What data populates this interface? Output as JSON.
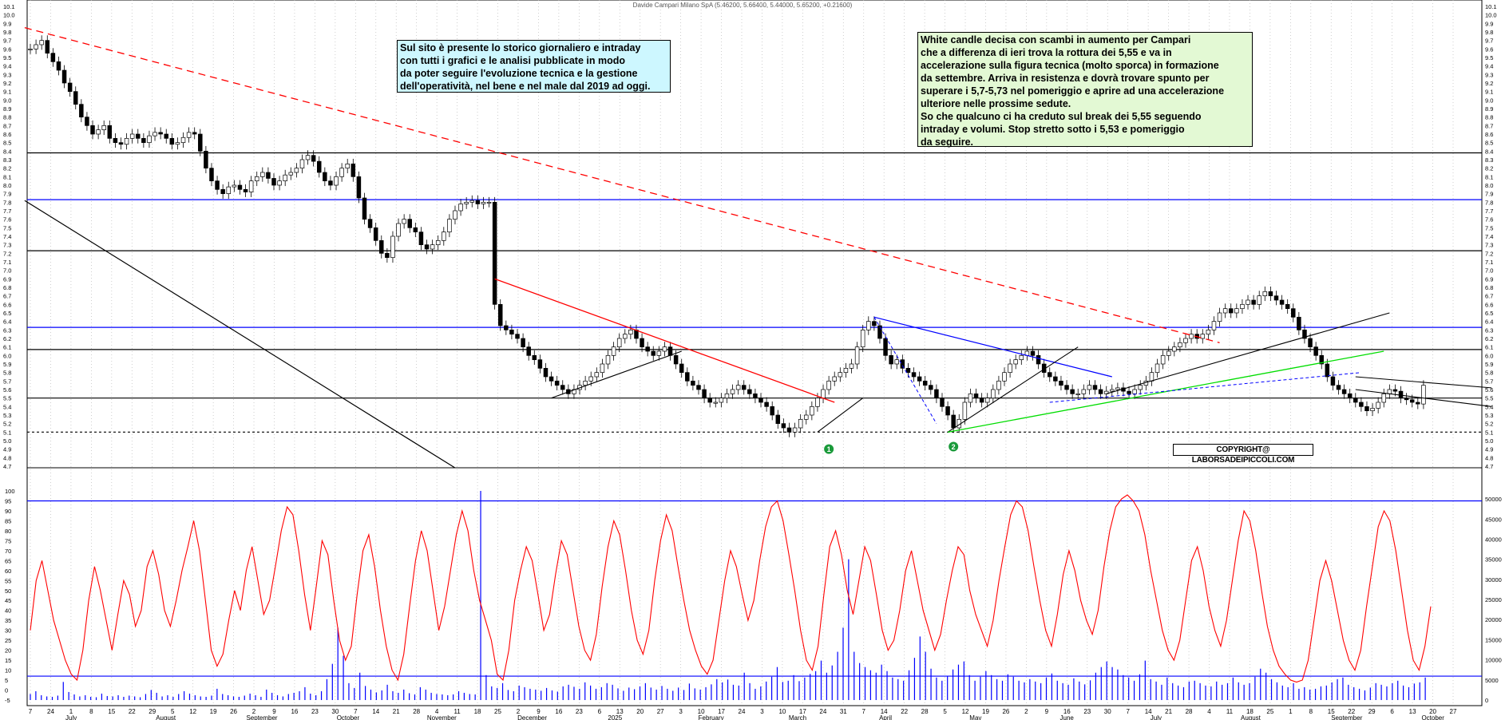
{
  "title": "Davide Campari Milano SpA (5.46200, 5.66400, 5.44000, 5.65200, +0.21600)",
  "note_left": [
    "Sul sito è presente lo storico giornaliero e intraday",
    "con tutti i grafici e le analisi pubblicate in modo",
    "da poter seguire l'evoluzione tecnica e la gestione",
    "dell'operatività, nel bene e nel male dal 2019 ad oggi."
  ],
  "note_right": [
    "White candle decisa con scambi in aumento per Campari",
    "che a differenza di ieri trova la rottura dei 5,55 e va in",
    "accelerazione sulla figura tecnica (molto sporca) in formazione",
    "da settembre. Arriva in resistenza e dovrà trovare spunto per",
    "superare i 5,7-5,73 nel pomeriggio e aprire ad una accelerazione",
    "ulteriore nelle prossime sedute.",
    "So che qualcuno ci ha creduto sul break dei 5,55 seguendo",
    "intraday e volumi. Stop stretto sotto i 5,53 e pomeriggio",
    "da seguire."
  ],
  "copyright": "COPYRIGHT@ LABORSADEIPICCOLI.COM",
  "markers": [
    "1",
    "2"
  ],
  "colors": {
    "candle": "#000000",
    "resistance_blue": "#0000ff",
    "support_black": "#000000",
    "downtrend_red": "#ff0000",
    "uptrend_green": "#00dd00",
    "oscillator": "#ff0000",
    "volume": "#0000ff",
    "marker_green": "#1a9a3a"
  },
  "chart_data": [
    {
      "type": "candlestick",
      "title": "Davide Campari Milano SpA (5.46200, 5.66400, 5.44000, 5.65200, +0.21600)",
      "last_bar": {
        "open": 5.462,
        "high": 5.664,
        "low": 5.44,
        "close": 5.652,
        "change": 0.216
      },
      "ylim": [
        4.7,
        10.1
      ],
      "y_ticks": [
        "10.1",
        "10.0",
        "9.9",
        "9.8",
        "9.7",
        "9.6",
        "9.5",
        "9.4",
        "9.3",
        "9.2",
        "9.1",
        "9.0",
        "8.9",
        "8.8",
        "8.7",
        "8.6",
        "8.5",
        "8.4",
        "8.3",
        "8.2",
        "8.1",
        "8.0",
        "7.9",
        "7.8",
        "7.7",
        "7.6",
        "7.5",
        "7.4",
        "7.3",
        "7.2",
        "7.1",
        "7.0",
        "6.9",
        "6.8",
        "6.7",
        "6.6",
        "6.5",
        "6.4",
        "6.3",
        "6.2",
        "6.1",
        "6.0",
        "5.9",
        "5.8",
        "5.7",
        "5.6",
        "5.5",
        "5.4",
        "5.3",
        "5.2",
        "5.1",
        "5.0",
        "4.9",
        "4.8",
        "4.7"
      ],
      "horizontal_levels": [
        {
          "value": 8.38,
          "color": "#000000"
        },
        {
          "value": 7.83,
          "color": "#0000ff"
        },
        {
          "value": 7.23,
          "color": "#000000"
        },
        {
          "value": 6.33,
          "color": "#0000ff"
        },
        {
          "value": 6.07,
          "color": "#000000"
        },
        {
          "value": 5.5,
          "color": "#000000"
        },
        {
          "value": 5.1,
          "color": "#000000",
          "style": "dashed"
        }
      ],
      "closes": [
        9.6,
        9.65,
        9.7,
        9.55,
        9.45,
        9.35,
        9.2,
        9.1,
        8.95,
        8.8,
        8.7,
        8.6,
        8.65,
        8.7,
        8.55,
        8.5,
        8.48,
        8.55,
        8.6,
        8.55,
        8.5,
        8.58,
        8.62,
        8.6,
        8.55,
        8.48,
        8.5,
        8.56,
        8.62,
        8.6,
        8.4,
        8.2,
        8.05,
        7.95,
        7.9,
        7.98,
        8.0,
        7.95,
        7.92,
        8.05,
        8.1,
        8.15,
        8.08,
        8.0,
        8.05,
        8.12,
        8.15,
        8.2,
        8.3,
        8.35,
        8.28,
        8.15,
        8.05,
        8.0,
        8.1,
        8.2,
        8.25,
        8.1,
        7.85,
        7.6,
        7.5,
        7.35,
        7.2,
        7.15,
        7.4,
        7.55,
        7.6,
        7.5,
        7.45,
        7.3,
        7.25,
        7.3,
        7.35,
        7.45,
        7.6,
        7.7,
        7.78,
        7.8,
        7.82,
        7.78,
        7.8,
        7.8,
        6.6,
        6.35,
        6.3,
        6.25,
        6.2,
        6.1,
        6.0,
        5.95,
        5.85,
        5.75,
        5.7,
        5.65,
        5.6,
        5.55,
        5.6,
        5.65,
        5.7,
        5.75,
        5.8,
        5.9,
        6.0,
        6.1,
        6.2,
        6.25,
        6.3,
        6.2,
        6.1,
        6.05,
        6.0,
        6.05,
        6.1,
        6.0,
        5.9,
        5.8,
        5.7,
        5.65,
        5.6,
        5.5,
        5.45,
        5.45,
        5.5,
        5.55,
        5.6,
        5.65,
        5.6,
        5.55,
        5.5,
        5.45,
        5.4,
        5.3,
        5.2,
        5.15,
        5.1,
        5.15,
        5.25,
        5.3,
        5.4,
        5.5,
        5.6,
        5.7,
        5.75,
        5.8,
        5.85,
        5.9,
        6.1,
        6.3,
        6.4,
        6.35,
        6.2,
        6.0,
        5.9,
        5.95,
        5.85,
        5.8,
        5.75,
        5.7,
        5.65,
        5.6,
        5.5,
        5.4,
        5.3,
        5.15,
        5.25,
        5.45,
        5.55,
        5.5,
        5.45,
        5.5,
        5.6,
        5.7,
        5.8,
        5.9,
        5.95,
        6.0,
        6.05,
        6.0,
        5.9,
        5.8,
        5.75,
        5.7,
        5.65,
        5.6,
        5.55,
        5.55,
        5.6,
        5.65,
        5.6,
        5.55,
        5.58,
        5.6,
        5.62,
        5.58,
        5.55,
        5.6,
        5.65,
        5.7,
        5.8,
        5.9,
        6.0,
        6.05,
        6.1,
        6.15,
        6.2,
        6.25,
        6.2,
        6.25,
        6.3,
        6.4,
        6.5,
        6.55,
        6.5,
        6.55,
        6.6,
        6.65,
        6.6,
        6.7,
        6.75,
        6.7,
        6.65,
        6.6,
        6.55,
        6.45,
        6.3,
        6.2,
        6.1,
        6.0,
        5.9,
        5.75,
        5.65,
        5.6,
        5.55,
        5.5,
        5.45,
        5.4,
        5.35,
        5.38,
        5.45,
        5.55,
        5.6,
        5.58,
        5.5,
        5.48,
        5.45,
        5.43,
        5.65
      ]
    },
    {
      "type": "line",
      "name": "oscillator",
      "ylim": [
        -5,
        100
      ],
      "y_ticks": [
        "100",
        "95",
        "90",
        "85",
        "80",
        "75",
        "70",
        "65",
        "60",
        "55",
        "50",
        "45",
        "40",
        "35",
        "30",
        "25",
        "20",
        "15",
        "10",
        "5",
        "0",
        "-5"
      ],
      "levels": [
        95,
        7
      ],
      "values": [
        30,
        55,
        65,
        50,
        35,
        25,
        15,
        8,
        5,
        20,
        45,
        62,
        50,
        35,
        20,
        38,
        55,
        48,
        32,
        40,
        62,
        70,
        58,
        40,
        32,
        45,
        60,
        72,
        85,
        70,
        45,
        20,
        12,
        18,
        35,
        50,
        40,
        60,
        72,
        55,
        38,
        45,
        62,
        80,
        92,
        88,
        70,
        48,
        30,
        52,
        75,
        68,
        45,
        25,
        15,
        22,
        48,
        70,
        78,
        62,
        40,
        22,
        10,
        5,
        18,
        42,
        65,
        80,
        70,
        50,
        30,
        42,
        60,
        78,
        90,
        80,
        60,
        45,
        35,
        25,
        8,
        5,
        20,
        45,
        60,
        72,
        65,
        48,
        30,
        38,
        58,
        75,
        68,
        50,
        32,
        20,
        15,
        28,
        52,
        72,
        85,
        78,
        60,
        40,
        25,
        18,
        30,
        55,
        75,
        88,
        80,
        62,
        45,
        30,
        20,
        12,
        8,
        15,
        35,
        55,
        70,
        62,
        48,
        35,
        45,
        65,
        82,
        92,
        95,
        85,
        68,
        50,
        30,
        15,
        10,
        22,
        48,
        72,
        80,
        68,
        50,
        38,
        55,
        72,
        65,
        48,
        30,
        20,
        25,
        40,
        60,
        70,
        55,
        40,
        30,
        20,
        28,
        45,
        60,
        72,
        68,
        50,
        38,
        30,
        22,
        35,
        55,
        72,
        88,
        95,
        92,
        80,
        62,
        45,
        30,
        22,
        38,
        58,
        70,
        60,
        45,
        35,
        28,
        40,
        62,
        80,
        92,
        96,
        98,
        95,
        90,
        78,
        60,
        45,
        30,
        20,
        15,
        25,
        45,
        65,
        72,
        60,
        42,
        30,
        22,
        35,
        55,
        75,
        90,
        85,
        70,
        50,
        32,
        20,
        12,
        8,
        5,
        4,
        5,
        15,
        35,
        55,
        65,
        55,
        40,
        25,
        15,
        10,
        20,
        42,
        62,
        82,
        90,
        85,
        70,
        50,
        30,
        15,
        10,
        22,
        42
      ]
    },
    {
      "type": "bar",
      "name": "volume",
      "ylim": [
        0,
        52000
      ],
      "y_ticks": [
        "50000",
        "45000",
        "40000",
        "35000",
        "30000",
        "25000",
        "20000",
        "15000",
        "10000",
        "5000",
        "0"
      ],
      "values": [
        1500,
        2200,
        1200,
        900,
        800,
        1100,
        4500,
        2000,
        1400,
        900,
        1200,
        800,
        700,
        1600,
        1000,
        900,
        1200,
        800,
        1100,
        900,
        700,
        1500,
        2500,
        1800,
        900,
        1200,
        800,
        1500,
        2200,
        1600,
        1200,
        900,
        800,
        1100,
        2800,
        1500,
        1200,
        900,
        800,
        1100,
        1600,
        1200,
        800,
        2600,
        1800,
        1200,
        900,
        1500,
        1800,
        2200,
        3200,
        1600,
        1200,
        2200,
        5200,
        9000,
        18000,
        11000,
        4200,
        3000,
        6800,
        3500,
        2600,
        1900,
        2400,
        3800,
        2200,
        1800,
        2600,
        1700,
        1400,
        3200,
        2600,
        1800,
        1500,
        1400,
        1200,
        1400,
        2200,
        1800,
        1500,
        1400,
        52000,
        6200,
        3400,
        3000,
        4200,
        2500,
        2200,
        3600,
        3200,
        2800,
        2600,
        2300,
        3000,
        2400,
        2100,
        3400,
        3800,
        3300,
        2800,
        4400,
        3600,
        2800,
        3200,
        4200,
        3800,
        2900,
        2300,
        3100,
        2700,
        3400,
        4200,
        3100,
        2600,
        3500,
        2800,
        2300,
        3100,
        2500,
        4100,
        2900,
        2600,
        3200,
        3900,
        5200,
        4400,
        5100,
        3800,
        3600,
        6800,
        4200,
        2800,
        3400,
        4600,
        5800,
        8200,
        4500,
        4800,
        6200,
        4700,
        5600,
        6500,
        7200,
        9800,
        6800,
        8600,
        12000,
        18000,
        35000,
        12000,
        9200,
        8200,
        7400,
        6800,
        8800,
        7200,
        5600,
        5200,
        4800,
        7400,
        10500,
        15800,
        12000,
        7800,
        5600,
        4800,
        6000,
        7600,
        8800,
        9600,
        6200,
        4800,
        5800,
        7200,
        6200,
        5200,
        4800,
        6400,
        5800,
        4800,
        4400,
        5200,
        4600,
        4200,
        5600,
        6600,
        4800,
        4200,
        3800,
        5400,
        4600,
        3900,
        4900,
        6800,
        8200,
        9600,
        8200,
        7600,
        6200,
        5600,
        4800,
        6400,
        9800,
        5200,
        4600,
        3800,
        5600,
        4200,
        3600,
        3200,
        4600,
        4800,
        4200,
        3600,
        3400,
        4600,
        3800,
        4200,
        5600,
        4400,
        3800,
        4200,
        5800,
        7800,
        6800,
        5200,
        4400,
        3600,
        3200,
        4200,
        2800,
        3200,
        2600,
        2800,
        3400,
        3600,
        4400,
        5200,
        5600,
        3800,
        3200,
        2800,
        2400,
        3100,
        4200,
        3800,
        3400,
        4200,
        4800,
        3600,
        3200,
        4100,
        4400,
        5600
      ]
    },
    {
      "type": "axis",
      "x_tick_labels": [
        "7",
        "24",
        "1",
        "8",
        "15",
        "22",
        "29",
        "5",
        "12",
        "19",
        "26",
        "2",
        "9",
        "16",
        "23",
        "30",
        "7",
        "14",
        "21",
        "28",
        "4",
        "11",
        "18",
        "25",
        "2",
        "9",
        "16",
        "23",
        "6",
        "13",
        "20",
        "27",
        "3",
        "10",
        "17",
        "24",
        "3",
        "10",
        "17",
        "24",
        "31",
        "7",
        "14",
        "22",
        "28",
        "5",
        "12",
        "19",
        "26",
        "2",
        "9",
        "16",
        "23",
        "30",
        "7",
        "14",
        "21",
        "28",
        "4",
        "11",
        "18",
        "25",
        "1",
        "8",
        "15",
        "22",
        "29",
        "6",
        "13",
        "20",
        "27"
      ],
      "month_labels": [
        "July",
        "August",
        "September",
        "October",
        "November",
        "December",
        "2025",
        "February",
        "March",
        "April",
        "May",
        "June",
        "July",
        "August",
        "September",
        "October"
      ]
    }
  ]
}
